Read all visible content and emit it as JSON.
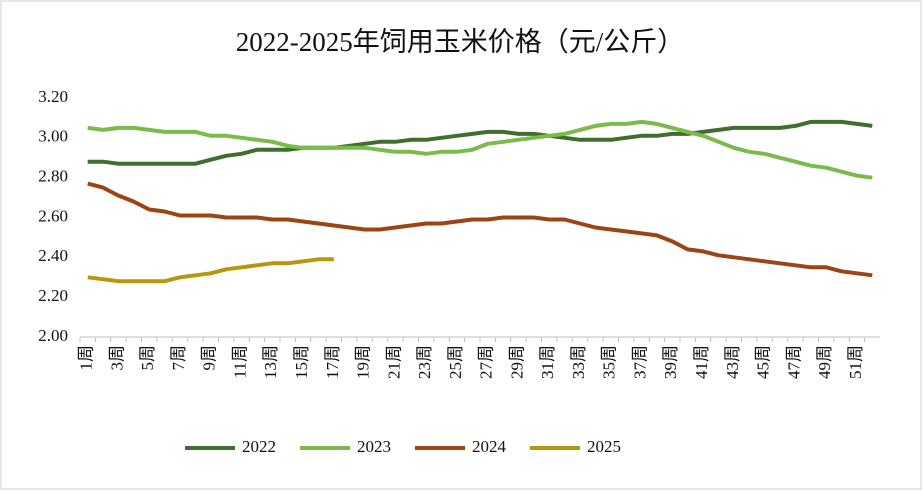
{
  "chart_data": {
    "type": "line",
    "title": "2022-2025年饲用玉米价格（元/公斤）",
    "categories": [
      "1周",
      null,
      "3周",
      null,
      "5周",
      null,
      "7周",
      null,
      "9周",
      null,
      "11周",
      null,
      "13周",
      null,
      "15周",
      null,
      "17周",
      null,
      "19周",
      null,
      "21周",
      null,
      "23周",
      null,
      "25周",
      null,
      "27周",
      null,
      "29周",
      null,
      "31周",
      null,
      "33周",
      null,
      "35周",
      null,
      "37周",
      null,
      "39周",
      null,
      "41周",
      null,
      "43周",
      null,
      "45周",
      null,
      "47周",
      null,
      "49周",
      null,
      "51周",
      null
    ],
    "series": [
      {
        "name": "2022",
        "color": "#3f6e2e",
        "values": [
          2.88,
          2.88,
          2.87,
          2.87,
          2.87,
          2.87,
          2.87,
          2.87,
          2.89,
          2.91,
          2.92,
          2.94,
          2.94,
          2.94,
          2.95,
          2.95,
          2.95,
          2.96,
          2.97,
          2.98,
          2.98,
          2.99,
          2.99,
          3.0,
          3.01,
          3.02,
          3.03,
          3.03,
          3.02,
          3.02,
          3.01,
          3.0,
          2.99,
          2.99,
          2.99,
          3.0,
          3.01,
          3.01,
          3.02,
          3.02,
          3.03,
          3.04,
          3.05,
          3.05,
          3.05,
          3.05,
          3.06,
          3.08,
          3.08,
          3.08,
          3.07,
          3.06
        ]
      },
      {
        "name": "2023",
        "color": "#7dba4c",
        "values": [
          3.05,
          3.04,
          3.05,
          3.05,
          3.04,
          3.03,
          3.03,
          3.03,
          3.01,
          3.01,
          3.0,
          2.99,
          2.98,
          2.96,
          2.95,
          2.95,
          2.95,
          2.95,
          2.95,
          2.94,
          2.93,
          2.93,
          2.92,
          2.93,
          2.93,
          2.94,
          2.97,
          2.98,
          2.99,
          3.0,
          3.01,
          3.02,
          3.04,
          3.06,
          3.07,
          3.07,
          3.08,
          3.07,
          3.05,
          3.03,
          3.01,
          2.98,
          2.95,
          2.93,
          2.92,
          2.9,
          2.88,
          2.86,
          2.85,
          2.83,
          2.81,
          2.8
        ]
      },
      {
        "name": "2024",
        "color": "#9c4416",
        "values": [
          2.77,
          2.75,
          2.71,
          2.68,
          2.64,
          2.63,
          2.61,
          2.61,
          2.61,
          2.6,
          2.6,
          2.6,
          2.59,
          2.59,
          2.58,
          2.57,
          2.56,
          2.55,
          2.54,
          2.54,
          2.55,
          2.56,
          2.57,
          2.57,
          2.58,
          2.59,
          2.59,
          2.6,
          2.6,
          2.6,
          2.59,
          2.59,
          2.57,
          2.55,
          2.54,
          2.53,
          2.52,
          2.51,
          2.48,
          2.44,
          2.43,
          2.41,
          2.4,
          2.39,
          2.38,
          2.37,
          2.36,
          2.35,
          2.35,
          2.33,
          2.32,
          2.31
        ]
      },
      {
        "name": "2025",
        "color": "#b8960e",
        "values": [
          2.3,
          2.29,
          2.28,
          2.28,
          2.28,
          2.28,
          2.3,
          2.31,
          2.32,
          2.34,
          2.35,
          2.36,
          2.37,
          2.37,
          2.38,
          2.39,
          2.39,
          null,
          null,
          null,
          null,
          null,
          null,
          null,
          null,
          null,
          null,
          null,
          null,
          null,
          null,
          null,
          null,
          null,
          null,
          null,
          null,
          null,
          null,
          null,
          null,
          null,
          null,
          null,
          null,
          null,
          null,
          null,
          null,
          null,
          null,
          null
        ]
      }
    ],
    "ylim": [
      2,
      3.2
    ],
    "yticks": [
      {
        "value": 2,
        "label": "2.00"
      },
      {
        "value": 2.2,
        "label": "2.20"
      },
      {
        "value": 2.4,
        "label": "2.40"
      },
      {
        "value": 2.6,
        "label": "2.60"
      },
      {
        "value": 2.8,
        "label": "2.80"
      },
      {
        "value": 3,
        "label": "3.00"
      },
      {
        "value": 3.2,
        "label": "3.20"
      }
    ],
    "grid": false,
    "legend": "bottom"
  }
}
